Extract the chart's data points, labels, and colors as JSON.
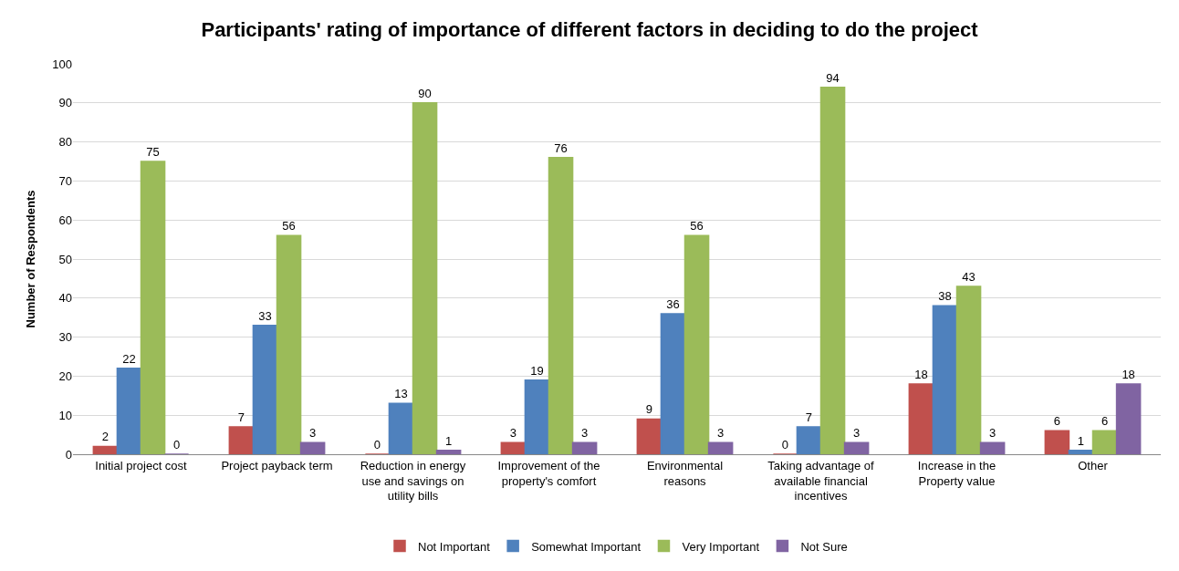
{
  "chart_data": {
    "type": "bar",
    "title": "Participants' rating of importance of different factors in deciding to do the project",
    "ylabel": "Number of Respondents",
    "categories": [
      "Initial project cost",
      "Project payback term",
      "Reduction in energy use and savings on utility bills",
      "Improvement of the property's comfort",
      "Environmental reasons",
      "Taking advantage of available financial incentives",
      "Increase in the Property value",
      "Other"
    ],
    "series": [
      {
        "name": "Not Important",
        "color": "#c0504d",
        "values": [
          2,
          7,
          0,
          3,
          9,
          0,
          18,
          6
        ]
      },
      {
        "name": "Somewhat Important",
        "color": "#4f81bd",
        "values": [
          22,
          33,
          13,
          19,
          36,
          7,
          38,
          1
        ]
      },
      {
        "name": "Very Important",
        "color": "#9bbb59",
        "values": [
          75,
          56,
          90,
          76,
          56,
          94,
          43,
          6
        ]
      },
      {
        "name": "Not Sure",
        "color": "#8064a2",
        "values": [
          0,
          3,
          1,
          3,
          3,
          3,
          3,
          18
        ]
      }
    ],
    "ylim": [
      0,
      100
    ],
    "yticks": [
      0,
      10,
      20,
      30,
      40,
      50,
      60,
      70,
      80,
      90,
      100
    ],
    "grid": "y",
    "legend": "bottom",
    "data_labels": true
  }
}
